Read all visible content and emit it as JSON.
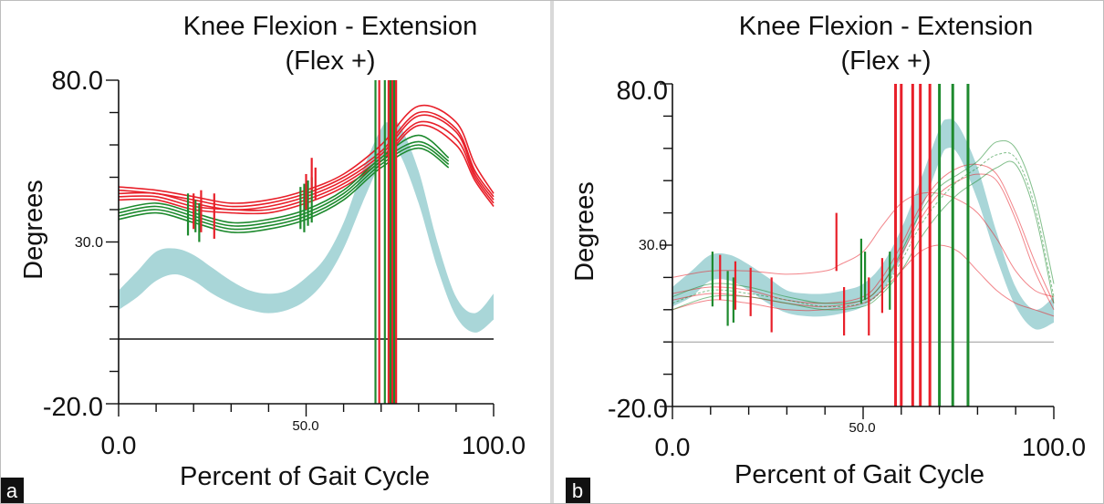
{
  "panel_a": {
    "panel_label": "a",
    "title_line1": "Knee Flexion - Extension",
    "title_line2": "(Flex +)",
    "y_top_label": "80.0",
    "y_mid_label": "30.0",
    "y_bottom_label": "-20.0",
    "x_left_label": "0.0",
    "x_mid_label": "50.0",
    "x_right_label": "100.0",
    "y_axis_label": "Degrees",
    "x_axis_label": "Percent of Gait Cycle"
  },
  "panel_b": {
    "panel_label": "b",
    "title_line1": "Knee Flexion - Extension",
    "title_line2": "(Flex +)",
    "y_top_label": "80.0",
    "y_mid_label": "30.0",
    "y_bottom_label": "-20.0",
    "x_left_label": "0.0",
    "x_mid_label": "50.0",
    "x_right_label": "100.0",
    "y_axis_label": "Degrees",
    "x_axis_label": "Percent of Gait Cycle"
  },
  "colors": {
    "right_side": "#e8202a",
    "left_side": "#1e8a2e",
    "normal_band": "#a9d6d8",
    "axis": "#111111"
  },
  "chart_data": [
    {
      "type": "line",
      "panel": "a",
      "title": "Knee Flexion - Extension (Flex +)",
      "xlabel": "Percent of Gait Cycle",
      "ylabel": "Degrees",
      "xlim": [
        0,
        100
      ],
      "ylim": [
        -20,
        80
      ],
      "y_labeled_ticks": [
        80,
        30,
        -20
      ],
      "x_labeled_ticks": [
        0,
        50,
        100
      ],
      "zero_line": true,
      "normal_band": {
        "x": [
          0,
          5,
          10,
          15,
          20,
          25,
          30,
          35,
          40,
          45,
          50,
          55,
          60,
          65,
          70,
          72,
          75,
          80,
          85,
          90,
          95,
          100
        ],
        "lower": [
          9,
          13,
          18,
          20,
          18,
          14,
          11,
          9,
          8,
          9,
          12,
          18,
          28,
          42,
          55,
          58,
          57,
          42,
          22,
          7,
          2,
          6
        ],
        "upper": [
          15,
          21,
          27,
          28,
          26,
          22,
          18,
          15,
          14,
          15,
          19,
          25,
          36,
          52,
          65,
          67,
          66,
          52,
          30,
          13,
          8,
          14
        ]
      },
      "series": [
        {
          "side": "right",
          "x": [
            0,
            10,
            20,
            30,
            40,
            50,
            60,
            70,
            80,
            90,
            95,
            100
          ],
          "values": [
            47,
            46,
            44,
            42,
            43,
            46,
            51,
            60,
            72,
            67,
            54,
            45
          ]
        },
        {
          "side": "right",
          "x": [
            0,
            10,
            20,
            30,
            40,
            50,
            60,
            70,
            80,
            90,
            95,
            100
          ],
          "values": [
            46,
            45,
            43,
            41,
            42,
            45,
            50,
            58,
            70,
            65,
            52,
            44
          ]
        },
        {
          "side": "right",
          "x": [
            0,
            10,
            20,
            30,
            40,
            50,
            60,
            70,
            80,
            90,
            95,
            100
          ],
          "values": [
            45,
            45,
            42,
            40,
            41,
            44,
            49,
            57,
            69,
            64,
            51,
            43
          ]
        },
        {
          "side": "right",
          "x": [
            0,
            10,
            20,
            30,
            40,
            50,
            60,
            70,
            80,
            90,
            95,
            100
          ],
          "values": [
            44,
            44,
            41,
            40,
            40,
            43,
            48,
            56,
            67,
            62,
            50,
            42
          ]
        },
        {
          "side": "right",
          "x": [
            0,
            10,
            20,
            30,
            40,
            50,
            60,
            70,
            80,
            90,
            95,
            100
          ],
          "values": [
            43,
            43,
            40,
            39,
            39,
            42,
            47,
            55,
            66,
            60,
            49,
            41
          ]
        },
        {
          "side": "left",
          "x": [
            0,
            10,
            20,
            30,
            40,
            50,
            60,
            70,
            80,
            88
          ],
          "values": [
            40,
            42,
            39,
            36,
            37,
            40,
            46,
            56,
            63,
            56
          ]
        },
        {
          "side": "left",
          "x": [
            0,
            10,
            20,
            30,
            40,
            50,
            60,
            70,
            80,
            88
          ],
          "values": [
            39,
            41,
            38,
            35,
            36,
            39,
            45,
            55,
            61,
            55
          ]
        },
        {
          "side": "left",
          "x": [
            0,
            10,
            20,
            30,
            40,
            50,
            60,
            70,
            80,
            88
          ],
          "values": [
            38,
            40,
            37,
            34,
            35,
            38,
            44,
            54,
            60,
            54
          ]
        },
        {
          "side": "left",
          "x": [
            0,
            10,
            20,
            30,
            40,
            50,
            60,
            70,
            80,
            88
          ],
          "values": [
            37,
            39,
            36,
            33,
            34,
            37,
            43,
            53,
            59,
            53
          ]
        }
      ],
      "event_markers": [
        {
          "side": "left",
          "x": 18.5,
          "y_from": 32,
          "y_to": 45
        },
        {
          "side": "left",
          "x": 20.5,
          "y_from": 33,
          "y_to": 43
        },
        {
          "side": "left",
          "x": 21.5,
          "y_from": 30,
          "y_to": 42
        },
        {
          "side": "right",
          "x": 20,
          "y_from": 34,
          "y_to": 45
        },
        {
          "side": "right",
          "x": 22,
          "y_from": 33,
          "y_to": 46
        },
        {
          "side": "right",
          "x": 25.5,
          "y_from": 31,
          "y_to": 45
        },
        {
          "side": "left",
          "x": 48.5,
          "y_from": 34,
          "y_to": 47
        },
        {
          "side": "left",
          "x": 49.5,
          "y_from": 33,
          "y_to": 48
        },
        {
          "side": "left",
          "x": 50.5,
          "y_from": 35,
          "y_to": 49
        },
        {
          "side": "left",
          "x": 51.5,
          "y_from": 36,
          "y_to": 50
        },
        {
          "side": "right",
          "x": 50,
          "y_from": 40,
          "y_to": 51
        },
        {
          "side": "right",
          "x": 51.5,
          "y_from": 46,
          "y_to": 56
        },
        {
          "side": "right",
          "x": 52.5,
          "y_from": 43,
          "y_to": 53
        },
        {
          "side": "left",
          "x": 68.5,
          "y_from": -20,
          "y_to": 80
        },
        {
          "side": "right",
          "x": 69.5,
          "y_from": -20,
          "y_to": 80
        },
        {
          "side": "left",
          "x": 71,
          "y_from": -20,
          "y_to": 80
        },
        {
          "side": "right",
          "x": 72,
          "y_from": -20,
          "y_to": 80
        },
        {
          "side": "left",
          "x": 72.5,
          "y_from": -20,
          "y_to": 80
        },
        {
          "side": "right",
          "x": 73,
          "y_from": -20,
          "y_to": 80
        },
        {
          "side": "left",
          "x": 73.5,
          "y_from": -20,
          "y_to": 80
        },
        {
          "side": "right",
          "x": 74,
          "y_from": -20,
          "y_to": 80
        }
      ]
    },
    {
      "type": "line",
      "panel": "b",
      "title": "Knee Flexion - Extension (Flex +)",
      "xlabel": "Percent of Gait Cycle",
      "ylabel": "Degrees",
      "xlim": [
        0,
        100
      ],
      "ylim": [
        -20,
        80
      ],
      "y_labeled_ticks": [
        80,
        30,
        -20
      ],
      "x_labeled_ticks": [
        0,
        50,
        100
      ],
      "zero_line": true,
      "normal_band": {
        "x": [
          0,
          5,
          10,
          15,
          20,
          25,
          30,
          35,
          40,
          45,
          50,
          55,
          60,
          65,
          70,
          72,
          75,
          80,
          85,
          90,
          95,
          100
        ],
        "lower": [
          11,
          14,
          19,
          19,
          16,
          12,
          9,
          8,
          8,
          9,
          11,
          16,
          26,
          40,
          56,
          60,
          58,
          44,
          26,
          11,
          4,
          6
        ],
        "upper": [
          17,
          22,
          27,
          27,
          24,
          20,
          16,
          15,
          15,
          16,
          18,
          24,
          35,
          50,
          66,
          69,
          67,
          54,
          34,
          17,
          10,
          14
        ]
      },
      "series": [
        {
          "side": "right",
          "x": [
            0,
            10,
            20,
            30,
            40,
            44,
            50,
            55,
            60,
            65,
            70,
            75,
            80,
            85,
            90,
            95,
            100
          ],
          "values": [
            20,
            22,
            22,
            21,
            22,
            24,
            28,
            36,
            43,
            46,
            46,
            44,
            40,
            32,
            22,
            16,
            14
          ]
        },
        {
          "side": "right",
          "x": [
            0,
            10,
            20,
            30,
            40,
            50,
            55,
            60,
            65,
            70,
            75,
            80,
            85,
            90,
            95,
            100
          ],
          "values": [
            15,
            17,
            16,
            13,
            12,
            14,
            20,
            30,
            42,
            50,
            54,
            55,
            52,
            40,
            25,
            12
          ]
        },
        {
          "side": "right",
          "x": [
            0,
            10,
            20,
            30,
            40,
            50,
            55,
            60,
            65,
            70,
            75,
            80,
            85,
            90,
            95,
            100
          ],
          "values": [
            13,
            15,
            14,
            12,
            11,
            13,
            18,
            27,
            38,
            46,
            50,
            52,
            50,
            38,
            22,
            10
          ]
        },
        {
          "side": "right",
          "x": [
            0,
            10,
            20,
            30,
            40,
            50,
            55,
            60,
            65,
            70,
            75,
            80,
            85,
            90,
            95,
            100
          ],
          "values": [
            10,
            13,
            12,
            10,
            10,
            12,
            16,
            22,
            28,
            30,
            28,
            22,
            16,
            12,
            10,
            8
          ]
        },
        {
          "side": "left",
          "x": [
            0,
            10,
            20,
            30,
            40,
            50,
            55,
            60,
            65,
            70,
            75,
            80,
            85,
            90,
            95,
            100
          ],
          "values": [
            14,
            18,
            17,
            14,
            12,
            13,
            18,
            28,
            40,
            48,
            52,
            56,
            62,
            60,
            45,
            18
          ]
        },
        {
          "side": "left",
          "x": [
            0,
            10,
            20,
            30,
            40,
            50,
            55,
            60,
            65,
            70,
            75,
            80,
            85,
            90,
            95,
            100
          ],
          "values": [
            12,
            16,
            15,
            13,
            11,
            12,
            16,
            25,
            36,
            44,
            50,
            54,
            58,
            57,
            42,
            14
          ]
        },
        {
          "side": "left",
          "x": [
            0,
            10,
            20,
            30,
            40,
            50,
            55,
            60,
            65,
            70,
            75,
            80,
            85,
            90,
            95,
            100
          ],
          "values": [
            10,
            14,
            14,
            12,
            10,
            11,
            15,
            22,
            32,
            40,
            46,
            50,
            54,
            55,
            40,
            12
          ]
        }
      ],
      "event_markers": [
        {
          "side": "left",
          "x": 10.5,
          "y_from": 11,
          "y_to": 28
        },
        {
          "side": "right",
          "x": 12.5,
          "y_from": 13,
          "y_to": 27
        },
        {
          "side": "left",
          "x": 14.5,
          "y_from": 5,
          "y_to": 22
        },
        {
          "side": "left",
          "x": 16,
          "y_from": 6,
          "y_to": 20
        },
        {
          "side": "right",
          "x": 16.5,
          "y_from": 10,
          "y_to": 25
        },
        {
          "side": "right",
          "x": 20.5,
          "y_from": 8,
          "y_to": 23
        },
        {
          "side": "right",
          "x": 26,
          "y_from": 3,
          "y_to": 20
        },
        {
          "side": "right",
          "x": 43,
          "y_from": 22,
          "y_to": 40
        },
        {
          "side": "right",
          "x": 45,
          "y_from": 2,
          "y_to": 17
        },
        {
          "side": "left",
          "x": 49.5,
          "y_from": 12,
          "y_to": 32
        },
        {
          "side": "left",
          "x": 50.5,
          "y_from": 13,
          "y_to": 28
        },
        {
          "side": "right",
          "x": 51.5,
          "y_from": 2,
          "y_to": 20
        },
        {
          "side": "right",
          "x": 55,
          "y_from": 9,
          "y_to": 26
        },
        {
          "side": "left",
          "x": 57,
          "y_from": 10,
          "y_to": 28
        },
        {
          "side": "right",
          "x": 58.5,
          "y_from": -20,
          "y_to": 80
        },
        {
          "side": "right",
          "x": 60,
          "y_from": -20,
          "y_to": 80
        },
        {
          "side": "right",
          "x": 63,
          "y_from": -20,
          "y_to": 80
        },
        {
          "side": "right",
          "x": 65,
          "y_from": -20,
          "y_to": 80
        },
        {
          "side": "right",
          "x": 67.5,
          "y_from": -20,
          "y_to": 80
        },
        {
          "side": "left",
          "x": 70,
          "y_from": -20,
          "y_to": 80
        },
        {
          "side": "left",
          "x": 73.5,
          "y_from": -20,
          "y_to": 80
        },
        {
          "side": "left",
          "x": 77.5,
          "y_from": -20,
          "y_to": 80
        }
      ]
    }
  ]
}
